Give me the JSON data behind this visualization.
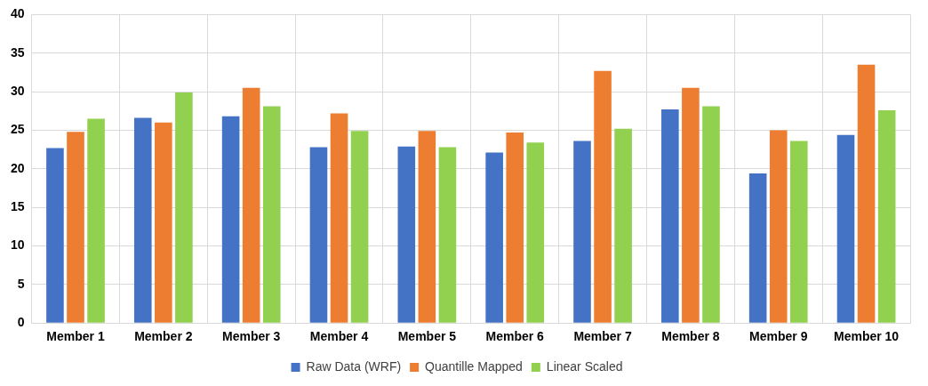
{
  "chart_data": {
    "type": "bar",
    "categories": [
      "Member 1",
      "Member 2",
      "Member 3",
      "Member 4",
      "Member 5",
      "Member 6",
      "Member 7",
      "Member 8",
      "Member 9",
      "Member 10"
    ],
    "series": [
      {
        "name": "Raw Data (WRF)",
        "color": "#4472c4",
        "values": [
          22.7,
          26.6,
          26.8,
          22.8,
          22.9,
          22.1,
          23.6,
          27.7,
          19.4,
          24.4
        ]
      },
      {
        "name": "Quantille Mapped",
        "color": "#ed7d31",
        "values": [
          24.8,
          26.0,
          30.5,
          27.2,
          24.9,
          24.7,
          32.7,
          30.5,
          25.0,
          33.5
        ]
      },
      {
        "name": "Linear Scaled",
        "color": "#92d050",
        "values": [
          26.5,
          29.9,
          28.1,
          24.9,
          22.8,
          23.4,
          25.2,
          28.1,
          23.6,
          27.6
        ]
      }
    ],
    "ylim": [
      0,
      40
    ],
    "yticks": [
      0,
      5,
      10,
      15,
      20,
      25,
      30,
      35,
      40
    ],
    "grid": true,
    "legend": "bottom"
  }
}
